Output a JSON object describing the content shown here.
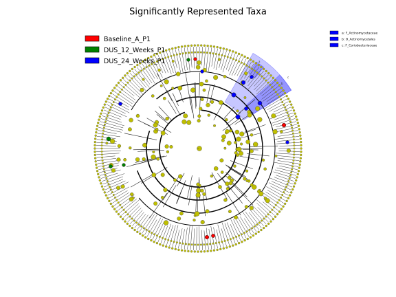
{
  "figure": {
    "title": "Significantly Represented Taxa"
  },
  "legend_groups": [
    {
      "label": "Baseline_A_P1",
      "color": "#ff0000"
    },
    {
      "label": "DUS_12_Weeks_P1",
      "color": "#008000"
    },
    {
      "label": "DUS_24_Weeks_P1",
      "color": "#0000ff"
    }
  ],
  "legend_clades": [
    {
      "label": "a: F_Actinomycetaceae",
      "color": "#0000ff"
    },
    {
      "label": "b: O_Actinomycetales",
      "color": "#0000ff"
    },
    {
      "label": "c: F_Coriobacteriaceae",
      "color": "#0000ff"
    }
  ],
  "clade_marks": [
    "a",
    "b",
    "c"
  ],
  "colors": {
    "nonsignificant": "#bfbf00",
    "baseline": "#ff0000",
    "dus12": "#008000",
    "dus24": "#0000ff",
    "highlight": "#0000ff"
  }
}
